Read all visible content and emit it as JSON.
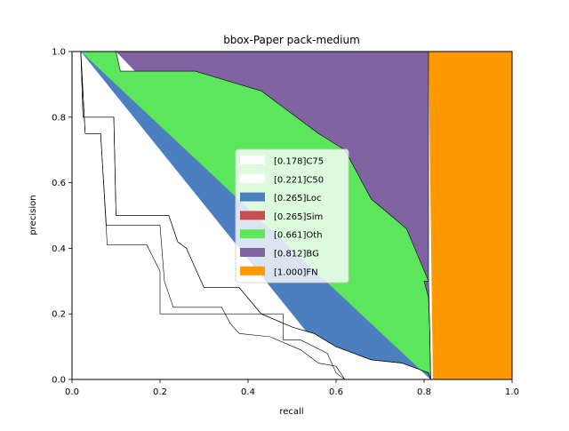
{
  "chart_data": {
    "type": "area",
    "title": "bbox-Paper pack-medium",
    "xlabel": "recall",
    "ylabel": "precision",
    "xlim": [
      0,
      1
    ],
    "ylim": [
      0,
      1
    ],
    "xticks": [
      "0.0",
      "0.2",
      "0.4",
      "0.6",
      "0.8",
      "1.0"
    ],
    "yticks": [
      "0.0",
      "0.2",
      "0.4",
      "0.6",
      "0.8",
      "1.0"
    ],
    "grid": false,
    "legend_position": "center",
    "series": [
      {
        "name": "[0.178]C75",
        "color": "#ffffff",
        "edge": "#000000",
        "curve": [
          [
            0,
            1
          ],
          [
            0.02,
            1
          ],
          [
            0.03,
            0.75
          ],
          [
            0.065,
            0.75
          ],
          [
            0.08,
            0.41
          ],
          [
            0.17,
            0.41
          ],
          [
            0.2,
            0.33
          ],
          [
            0.2,
            0.2
          ],
          [
            0.22,
            0.2
          ],
          [
            0.48,
            0.2
          ],
          [
            0.48,
            0.12
          ],
          [
            0.52,
            0.12
          ],
          [
            0.58,
            0.08
          ],
          [
            0.6,
            0.02
          ],
          [
            0.62,
            0
          ],
          [
            0,
            0
          ]
        ]
      },
      {
        "name": "[0.221]C50",
        "color": "#ffffff",
        "edge": "#000000",
        "curve": [
          [
            0.02,
            1
          ],
          [
            0.03,
            0.75
          ],
          [
            0.065,
            0.75
          ],
          [
            0.078,
            0.47
          ],
          [
            0.2,
            0.47
          ],
          [
            0.21,
            0.3
          ],
          [
            0.23,
            0.22
          ],
          [
            0.34,
            0.22
          ],
          [
            0.36,
            0.17
          ],
          [
            0.38,
            0.14
          ],
          [
            0.45,
            0.13
          ],
          [
            0.52,
            0.09
          ],
          [
            0.56,
            0.05
          ],
          [
            0.6,
            0.04
          ],
          [
            0.62,
            0
          ]
        ]
      },
      {
        "name": "[0.265]Loc",
        "color": "#4c7fbf",
        "edge": "#000000",
        "curve": [
          [
            0.02,
            1
          ],
          [
            0.025,
            0.8
          ],
          [
            0.095,
            0.8
          ],
          [
            0.1,
            0.5
          ],
          [
            0.22,
            0.5
          ],
          [
            0.24,
            0.42
          ],
          [
            0.26,
            0.4
          ],
          [
            0.3,
            0.28
          ],
          [
            0.38,
            0.28
          ],
          [
            0.43,
            0.2
          ],
          [
            0.5,
            0.16
          ],
          [
            0.55,
            0.14
          ],
          [
            0.6,
            0.1
          ],
          [
            0.68,
            0.06
          ],
          [
            0.75,
            0.05
          ],
          [
            0.79,
            0.03
          ],
          [
            0.81,
            0.02
          ],
          [
            0.815,
            0
          ]
        ]
      },
      {
        "name": "[0.265]Sim",
        "color": "#c44e52",
        "edge": "#000000",
        "curve": [
          [
            0.02,
            1
          ],
          [
            0.025,
            0.8
          ],
          [
            0.095,
            0.8
          ],
          [
            0.1,
            0.5
          ],
          [
            0.22,
            0.5
          ],
          [
            0.24,
            0.42
          ],
          [
            0.26,
            0.4
          ],
          [
            0.3,
            0.28
          ],
          [
            0.38,
            0.28
          ],
          [
            0.43,
            0.2
          ],
          [
            0.5,
            0.16
          ],
          [
            0.55,
            0.14
          ],
          [
            0.6,
            0.1
          ],
          [
            0.68,
            0.06
          ],
          [
            0.75,
            0.05
          ],
          [
            0.79,
            0.03
          ],
          [
            0.81,
            0.02
          ],
          [
            0.815,
            0
          ]
        ]
      },
      {
        "name": "[0.661]Oth",
        "color": "#5ce65c",
        "edge": "#000000",
        "curve": [
          [
            0.02,
            1
          ],
          [
            0.1,
            1
          ],
          [
            0.11,
            0.94
          ],
          [
            0.28,
            0.94
          ],
          [
            0.43,
            0.88
          ],
          [
            0.56,
            0.75
          ],
          [
            0.62,
            0.7
          ],
          [
            0.68,
            0.55
          ],
          [
            0.76,
            0.46
          ],
          [
            0.81,
            0.3
          ],
          [
            0.8,
            0.3
          ],
          [
            0.81,
            0.25
          ],
          [
            0.813,
            0.15
          ],
          [
            0.815,
            0
          ]
        ]
      },
      {
        "name": "[0.812]BG",
        "color": "#8064a2",
        "edge": "#000000",
        "curve": [
          [
            0.1,
            1
          ],
          [
            0.81,
            1
          ],
          [
            0.81,
            0.3
          ],
          [
            0.812,
            0.2
          ],
          [
            0.815,
            0
          ]
        ]
      },
      {
        "name": "[1.000]FN",
        "color": "#ff9900",
        "edge": "#000000",
        "curve": [
          [
            0.81,
            1
          ],
          [
            1,
            1
          ],
          [
            1,
            0
          ],
          [
            0.82,
            0
          ]
        ]
      }
    ]
  }
}
